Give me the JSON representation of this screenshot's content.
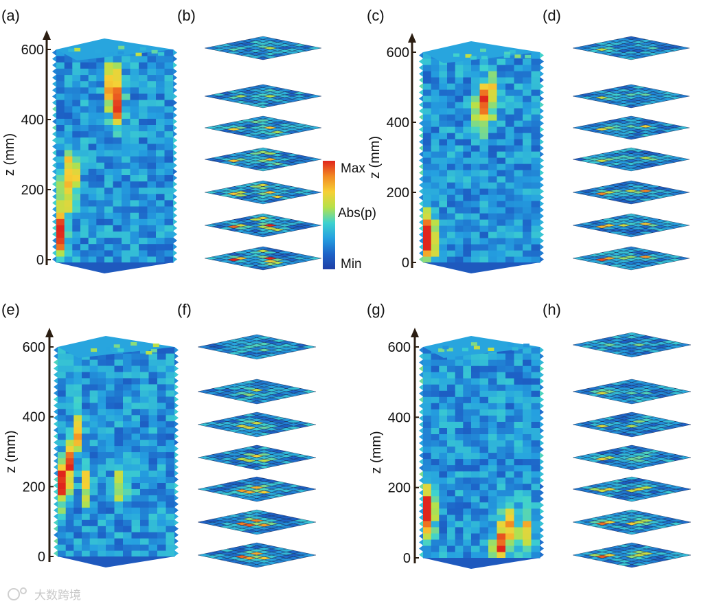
{
  "chart_data": [
    {
      "type": "heatmap",
      "panel_label": "(a)",
      "ylabel": "z (mm)",
      "ylim": [
        0,
        600
      ],
      "yticks": [
        0,
        200,
        400,
        600
      ],
      "hotspots": {
        "front": [
          [
            0.05,
            0.12,
            1.0
          ],
          [
            0.1,
            0.3,
            0.8
          ],
          [
            0.25,
            0.45,
            0.55
          ],
          [
            0.35,
            0.4,
            0.5
          ]
        ],
        "side": [
          [
            0.05,
            0.85,
            0.7
          ],
          [
            0.15,
            0.75,
            0.6
          ]
        ]
      }
    },
    {
      "type": "heatmap",
      "panel_label": "(b)",
      "hotspots": [
        [
          0.2,
          0.3,
          0.9
        ],
        [
          0.55,
          0.55,
          0.7
        ],
        [
          0.8,
          0.2,
          0.5
        ],
        [
          0.4,
          0.8,
          0.5
        ]
      ]
    },
    {
      "type": "heatmap",
      "panel_label": "(c)",
      "ylabel": "z (mm)",
      "ylim": [
        0,
        600
      ],
      "yticks": [
        0,
        200,
        400,
        600
      ],
      "hotspots": {
        "front": [
          [
            0.04,
            0.12,
            1.0
          ],
          [
            0.12,
            0.1,
            0.6
          ]
        ],
        "side": [
          [
            0.1,
            0.75,
            0.7
          ],
          [
            0.25,
            0.8,
            0.5
          ]
        ]
      }
    },
    {
      "type": "heatmap",
      "panel_label": "(d)",
      "hotspots": [
        [
          0.2,
          0.3,
          0.8
        ],
        [
          0.7,
          0.6,
          0.55
        ],
        [
          0.5,
          0.4,
          0.45
        ]
      ]
    },
    {
      "type": "heatmap",
      "panel_label": "(e)",
      "ylabel": "z (mm)",
      "ylim": [
        0,
        600
      ],
      "yticks": [
        0,
        200,
        400,
        600
      ],
      "hotspots": {
        "front": [
          [
            0.05,
            0.35,
            0.95
          ],
          [
            0.2,
            0.45,
            0.6
          ],
          [
            0.4,
            0.6,
            0.5
          ],
          [
            0.6,
            0.35,
            0.45
          ]
        ],
        "side": [
          [
            0.2,
            0.35,
            0.45
          ]
        ]
      }
    },
    {
      "type": "heatmap",
      "panel_label": "(f)",
      "hotspots": [
        [
          0.3,
          0.5,
          0.8
        ],
        [
          0.6,
          0.4,
          0.6
        ],
        [
          0.45,
          0.7,
          0.5
        ]
      ]
    },
    {
      "type": "heatmap",
      "panel_label": "(g)",
      "ylabel": "z (mm)",
      "ylim": [
        0,
        600
      ],
      "yticks": [
        0,
        200,
        400,
        600
      ],
      "hotspots": {
        "front": [
          [
            0.04,
            0.2,
            1.0
          ],
          [
            0.12,
            0.25,
            0.6
          ]
        ],
        "side": [
          [
            0.4,
            0.05,
            0.7
          ],
          [
            0.6,
            0.15,
            0.6
          ],
          [
            0.85,
            0.1,
            0.5
          ]
        ]
      }
    },
    {
      "type": "heatmap",
      "panel_label": "(h)",
      "hotspots": [
        [
          0.2,
          0.25,
          0.8
        ],
        [
          0.5,
          0.6,
          0.55
        ],
        [
          0.75,
          0.5,
          0.45
        ]
      ]
    }
  ],
  "colorbar": {
    "max_label": "Max",
    "mid_label": "Abs(p)",
    "min_label": "Min",
    "colors": [
      "#1f3fa6",
      "#1d64c8",
      "#25a0e0",
      "#3ed2cf",
      "#b6e14a",
      "#f6d035",
      "#f28a23",
      "#e0251c"
    ]
  },
  "watermark": "大数跨境"
}
